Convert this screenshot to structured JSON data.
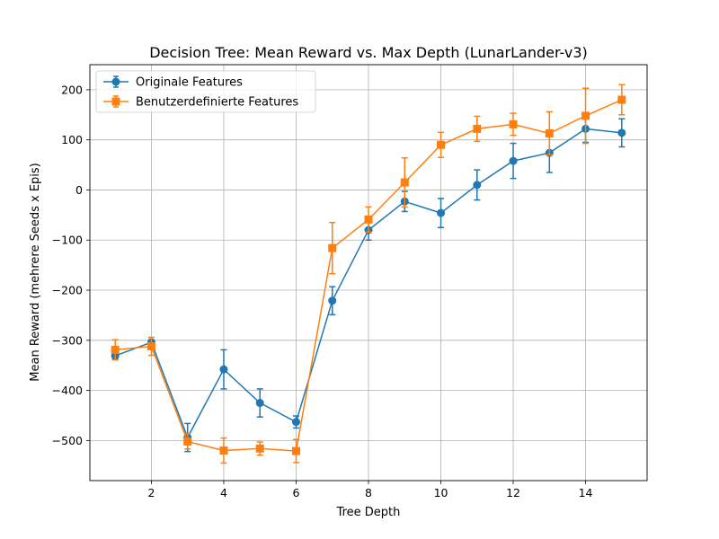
{
  "chart_data": {
    "type": "line",
    "title": "Decision Tree: Mean Reward vs. Max Depth (LunarLander-v3)",
    "xlabel": "Tree Depth",
    "ylabel": "Mean Reward (mehrere Seeds x Epis)",
    "xlim": [
      0.3,
      15.7
    ],
    "ylim": [
      -580,
      250
    ],
    "xticks": [
      2,
      4,
      6,
      8,
      10,
      12,
      14
    ],
    "yticks": [
      -500,
      -400,
      -300,
      -200,
      -100,
      0,
      100,
      200
    ],
    "grid": true,
    "legend_position": "top-left",
    "x": [
      1,
      2,
      3,
      4,
      5,
      6,
      7,
      8,
      9,
      10,
      11,
      12,
      13,
      14,
      15
    ],
    "series": [
      {
        "name": "Originale Features",
        "color": "#1f77b4",
        "marker": "circle",
        "values": [
          -331,
          -304,
          -494,
          -358,
          -425,
          -463,
          -221,
          -80,
          -23,
          -46,
          10,
          58,
          74,
          122,
          114
        ],
        "errors": [
          7,
          5,
          28,
          39,
          28,
          12,
          28,
          20,
          20,
          29,
          30,
          35,
          39,
          27,
          28
        ]
      },
      {
        "name": "Benutzerdefinierte Features",
        "color": "#ff7f0e",
        "marker": "square",
        "values": [
          -319,
          -312,
          -502,
          -520,
          -516,
          -521,
          -116,
          -59,
          15,
          90,
          122,
          131,
          113,
          148,
          180
        ],
        "errors": [
          20,
          18,
          15,
          25,
          13,
          23,
          51,
          25,
          49,
          25,
          25,
          22,
          43,
          55,
          30
        ]
      }
    ]
  }
}
